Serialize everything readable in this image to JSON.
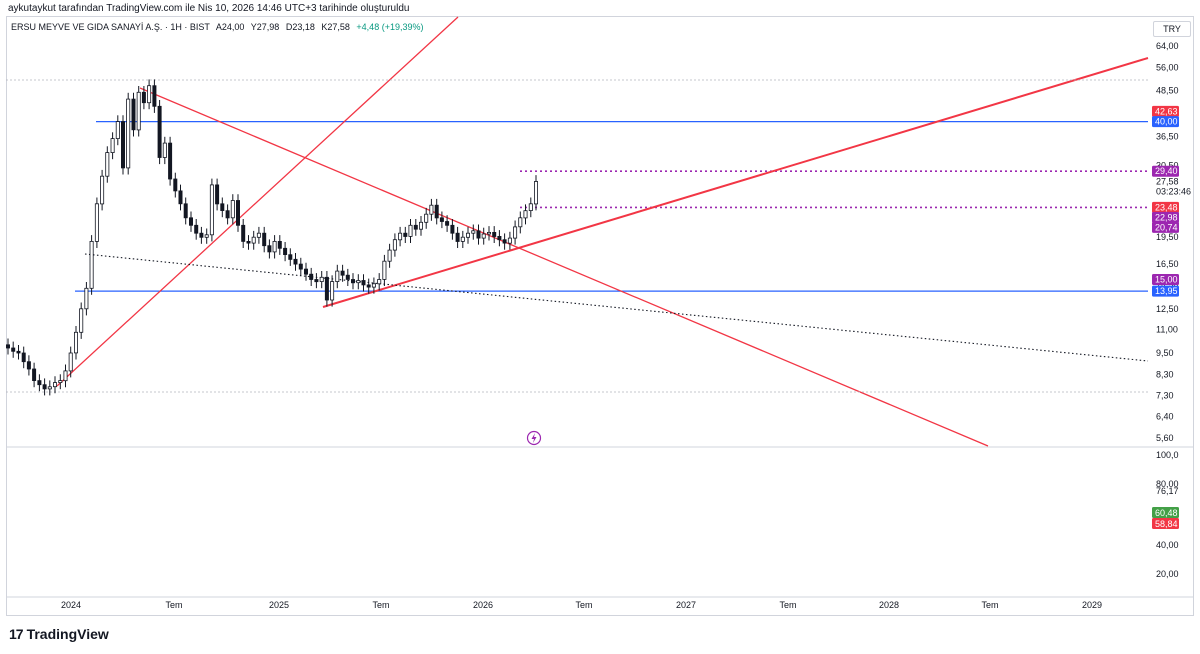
{
  "attribution": "aykutaykut tarafından TradingView.com ile Nis 10, 2026 14:46 UTC+3 tarihinde oluşturuldu",
  "legend": {
    "symbol": "ERSU MEYVE VE GIDA SANAYİ A.Ş. · 1H · BIST",
    "open": "A24,00",
    "high": "Y27,98",
    "low": "D23,18",
    "close": "K27,58",
    "change": "+4,48 (+19,39%)"
  },
  "currency": "TRY",
  "brand": "TradingView",
  "colors": {
    "up": "#ffffff",
    "down": "#131722",
    "trendline": "#f23645",
    "horizontal": "#2962ff",
    "dotted_level": "#9c27b0",
    "badge_red": "#f23645",
    "badge_blue": "#2962ff",
    "badge_purple": "#9c27b0",
    "badge_green": "#43a047"
  },
  "chart_data": {
    "type": "candlestick",
    "scale": "log",
    "x_ticks": [
      "2024",
      "Tem",
      "2025",
      "Tem",
      "2026",
      "Tem",
      "2027",
      "Tem",
      "2028",
      "Tem",
      "2029"
    ],
    "y_ticks": [
      "64,00",
      "56,00",
      "48,50",
      "42,00",
      "36,50",
      "30,50",
      "27,58",
      "19,50",
      "16,50",
      "14,50",
      "12,50",
      "11,00",
      "9,50",
      "8,30",
      "7,30",
      "6,40",
      "5,60"
    ],
    "price_labels": [
      {
        "text": "42,63",
        "color": "#f23645",
        "value": 42.63
      },
      {
        "text": "40,00",
        "color": "#2962ff",
        "value": 40.0
      },
      {
        "text": "29,40",
        "color": "#9c27b0",
        "value": 29.4
      },
      {
        "text": "27,58",
        "color": "none",
        "value": 27.58
      },
      {
        "text": "03:23:46",
        "color": "none",
        "value": 26.3
      },
      {
        "text": "23,48",
        "color": "#f23645",
        "value": 23.48
      },
      {
        "text": "22,98",
        "color": "#9c27b0",
        "value": 22.98
      },
      {
        "text": "20,74",
        "color": "#9c27b0",
        "value": 20.74
      },
      {
        "text": "15,00",
        "color": "#9c27b0",
        "value": 15.0
      },
      {
        "text": "13,95",
        "color": "#2962ff",
        "value": 13.95
      }
    ],
    "horizontal_lines": [
      {
        "value": 40.0,
        "style": "solid",
        "color": "#2962ff"
      },
      {
        "value": 13.95,
        "style": "solid",
        "color": "#2962ff"
      },
      {
        "value": 29.4,
        "style": "dotted",
        "color": "#9c27b0"
      },
      {
        "value": 23.48,
        "style": "dotted",
        "color": "#9c27b0"
      }
    ],
    "candles_weekly_close": [
      9.8,
      9.6,
      9.5,
      9.0,
      8.6,
      8.0,
      7.8,
      7.6,
      7.7,
      7.9,
      8.0,
      8.5,
      9.5,
      10.8,
      12.5,
      14.2,
      19.0,
      24.0,
      28.5,
      33.0,
      36.0,
      40.0,
      30.0,
      46.0,
      38.0,
      48.0,
      45.0,
      50.0,
      44.0,
      32.0,
      35.0,
      28.0,
      26.0,
      24.0,
      22.0,
      21.0,
      20.0,
      19.5,
      19.8,
      27.0,
      24.0,
      23.0,
      22.0,
      24.5,
      21.0,
      19.0,
      18.8,
      19.5,
      20.0,
      18.5,
      17.8,
      19.0,
      18.2,
      17.5,
      17.0,
      16.5,
      16.0,
      15.5,
      15.0,
      14.8,
      15.2,
      13.2,
      14.8,
      15.8,
      15.4,
      15.0,
      14.7,
      14.9,
      14.5,
      14.3,
      14.6,
      15.0,
      16.8,
      18.0,
      19.2,
      20.0,
      19.6,
      21.0,
      20.5,
      21.4,
      22.5,
      23.8,
      22.0,
      21.5,
      21.0,
      20.0,
      19.0,
      19.5,
      20.0,
      20.3,
      19.4,
      19.9,
      20.1,
      19.6,
      19.2,
      18.8,
      19.4,
      20.8,
      22.0,
      23.0,
      24.0,
      27.58
    ]
  }
}
